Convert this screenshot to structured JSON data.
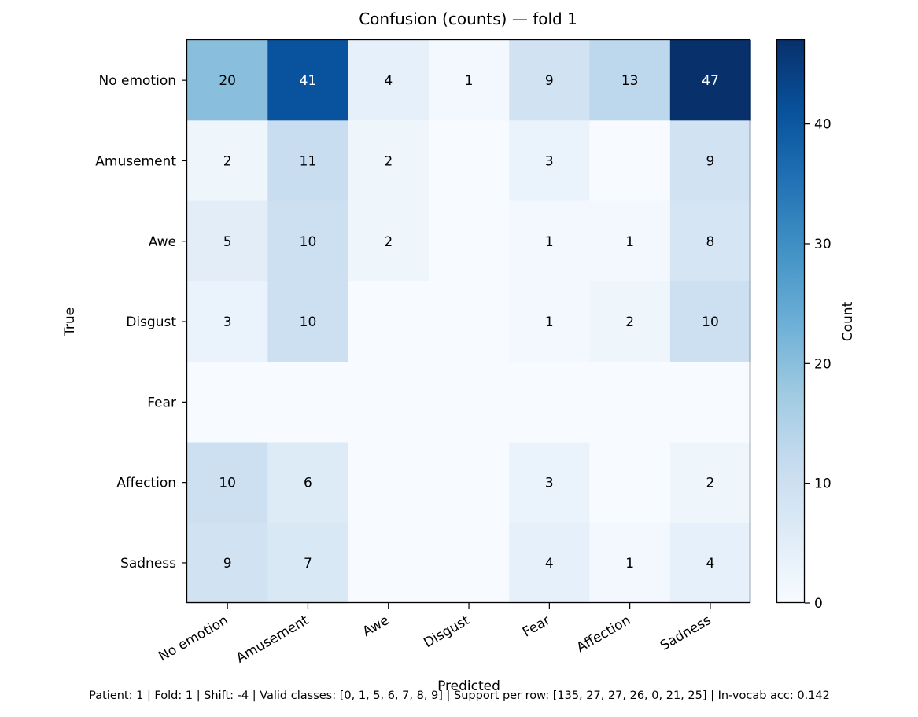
{
  "chart_data": {
    "type": "heatmap",
    "title": "Confusion (counts) — fold 1",
    "xlabel": "Predicted",
    "ylabel": "True",
    "x_categories": [
      "No emotion",
      "Amusement",
      "Awe",
      "Disgust",
      "Fear",
      "Affection",
      "Sadness"
    ],
    "y_categories": [
      "No emotion",
      "Amusement",
      "Awe",
      "Disgust",
      "Fear",
      "Affection",
      "Sadness"
    ],
    "values": [
      [
        20,
        41,
        4,
        1,
        9,
        13,
        47
      ],
      [
        2,
        11,
        2,
        0,
        3,
        0,
        9
      ],
      [
        5,
        10,
        2,
        0,
        1,
        1,
        8
      ],
      [
        3,
        10,
        0,
        0,
        1,
        2,
        10
      ],
      [
        0,
        0,
        0,
        0,
        0,
        0,
        0
      ],
      [
        10,
        6,
        0,
        0,
        3,
        0,
        2
      ],
      [
        9,
        7,
        0,
        0,
        4,
        1,
        4
      ]
    ],
    "cell_labels": [
      [
        "20",
        "41",
        "4",
        "1",
        "9",
        "13",
        "47"
      ],
      [
        "2",
        "11",
        "2",
        "",
        "3",
        "",
        "9"
      ],
      [
        "5",
        "10",
        "2",
        "",
        "1",
        "1",
        "8"
      ],
      [
        "3",
        "10",
        "",
        "",
        "1",
        "2",
        "10"
      ],
      [
        "",
        "",
        "",
        "",
        "",
        "",
        ""
      ],
      [
        "10",
        "6",
        "",
        "",
        "3",
        "",
        "2"
      ],
      [
        "9",
        "7",
        "",
        "",
        "4",
        "1",
        "4"
      ]
    ],
    "colormap": "Blues",
    "color_range": [
      0,
      47
    ],
    "colorbar": {
      "label": "Count",
      "ticks": [
        0,
        10,
        20,
        30,
        40
      ],
      "tick_labels": [
        "0",
        "10",
        "20",
        "30",
        "40"
      ]
    },
    "footnote": "Patient: 1 | Fold: 1 | Shift: -4 | Valid classes: [0, 1, 5, 6, 7, 8, 9] | Support per row: [135, 27, 27, 26, 0, 21, 25] | In-vocab acc: 0.142"
  }
}
